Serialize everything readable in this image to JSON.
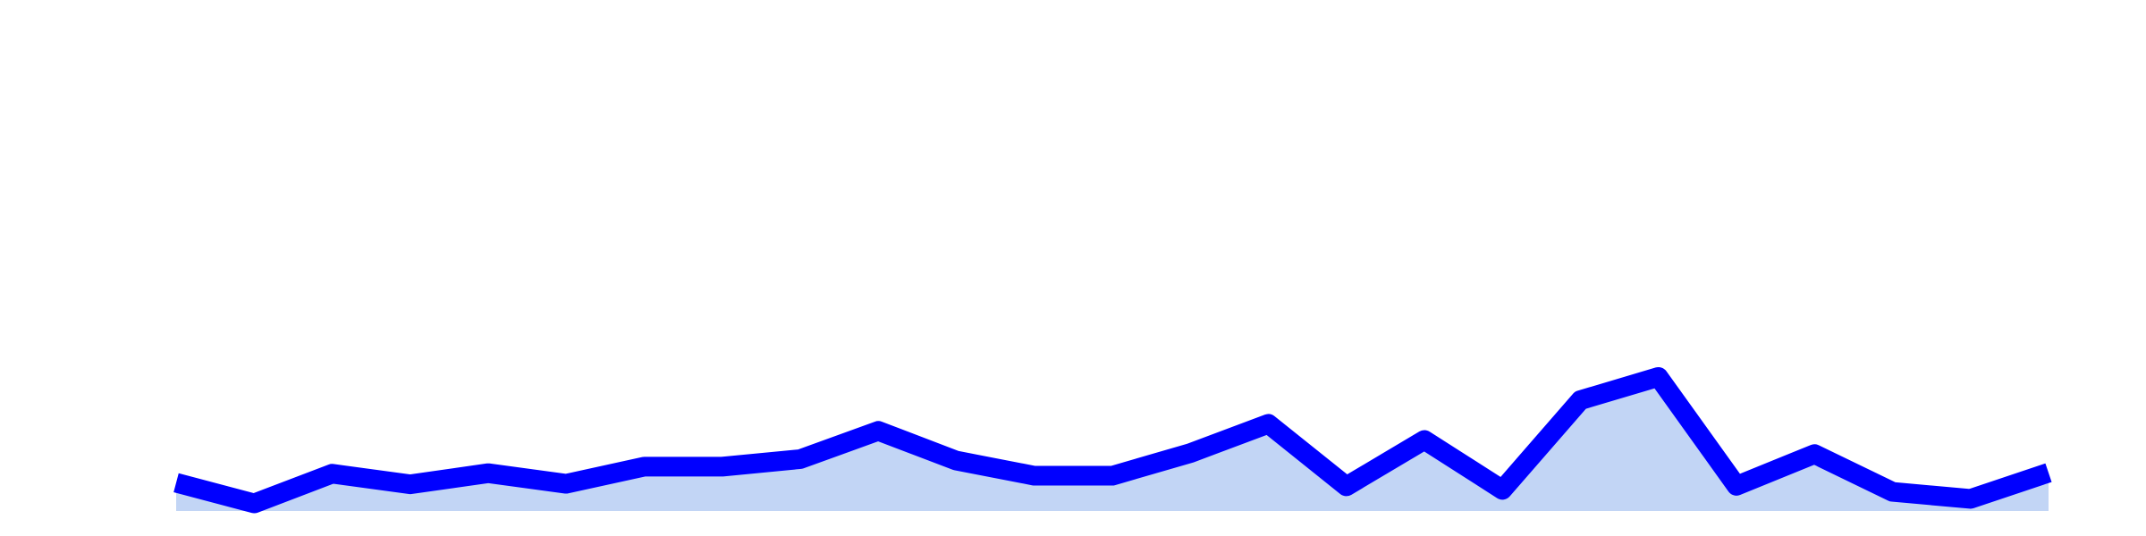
{
  "chart_data": {
    "type": "area",
    "title": "",
    "xlabel": "",
    "ylabel": "",
    "grid": false,
    "legend": false,
    "x": [
      1,
      2,
      3,
      4,
      5,
      6,
      7,
      8,
      9,
      10,
      11,
      12,
      13,
      14,
      15,
      16,
      17,
      18,
      19,
      20,
      21,
      22,
      23,
      24,
      25
    ],
    "ylim": [
      0,
      100
    ],
    "series": [
      {
        "values": [
          5.6,
          1.5,
          7.4,
          5.3,
          7.5,
          5.4,
          8.8,
          8.8,
          10.3,
          15.9,
          10.0,
          7.0,
          7.0,
          11.5,
          17.3,
          4.9,
          14.1,
          4.2,
          22.0,
          26.6,
          5.0,
          11.3,
          3.8,
          2.4,
          7.6
        ],
        "line_color": "#0000ff",
        "fill_color": "#c2d5f5"
      }
    ]
  }
}
